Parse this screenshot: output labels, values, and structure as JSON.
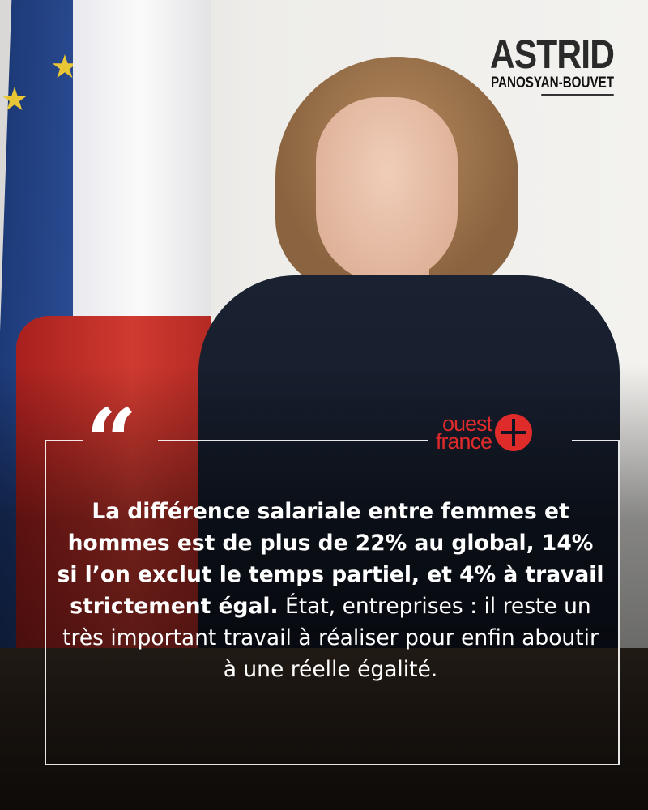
{
  "logo": {
    "first_name": "ASTRID",
    "last_name": "PANOSYAN-BOUVET"
  },
  "source_logo": {
    "line1": "ouest",
    "line2": "france",
    "color": "#e02b2b"
  },
  "quote": {
    "mark": "“",
    "bold": "La différence salariale entre femmes et hommes est de plus de 22% au global, 14% si l’on exclut le temps partiel, et 4% à travail strictement égal.",
    "regular": " État, entreprises : il reste un très important travail à réaliser pour enfin aboutir à une réelle égalité."
  }
}
